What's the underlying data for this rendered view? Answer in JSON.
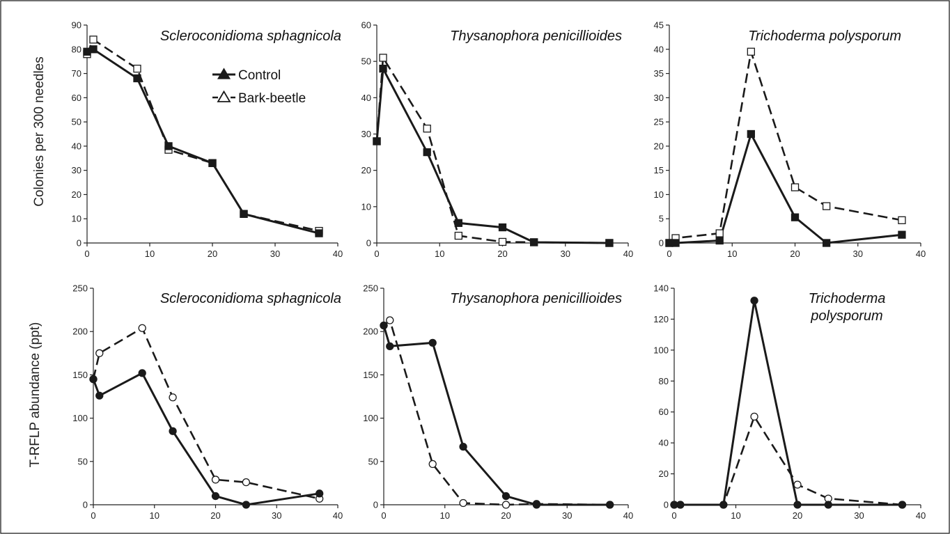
{
  "figure": {
    "ylabel_top": "Colonies per 300 needles",
    "ylabel_bottom": "T-RFLP abundance (ppt)",
    "legend": {
      "control_label": "Control",
      "bark_label": "Bark-beetle"
    }
  },
  "chart_data": [
    {
      "type": "line",
      "row": "top",
      "title": [
        "Scleroconidioma sphagnicola"
      ],
      "xlim": [
        0,
        40
      ],
      "xticks": [
        0,
        10,
        20,
        30,
        40
      ],
      "ylim": [
        0,
        90
      ],
      "yticks": [
        0,
        10,
        20,
        30,
        40,
        50,
        60,
        70,
        80,
        90
      ],
      "marker": "square",
      "series": [
        {
          "name": "Control",
          "style": "solid",
          "filled": true,
          "x": [
            0,
            1,
            8,
            13,
            20,
            25,
            37
          ],
          "y": [
            79,
            80,
            68,
            40,
            33,
            12,
            4
          ]
        },
        {
          "name": "Bark-beetle",
          "style": "dashed",
          "filled": false,
          "x": [
            0,
            1,
            8,
            13,
            20,
            25,
            37
          ],
          "y": [
            78,
            84,
            72,
            38.5,
            33,
            12,
            5
          ]
        }
      ]
    },
    {
      "type": "line",
      "row": "top",
      "title": [
        "Thysanophora penicillioides"
      ],
      "xlim": [
        0,
        40
      ],
      "xticks": [
        0,
        10,
        20,
        30,
        40
      ],
      "ylim": [
        0,
        60
      ],
      "yticks": [
        0,
        10,
        20,
        30,
        40,
        50,
        60
      ],
      "marker": "square",
      "series": [
        {
          "name": "Control",
          "style": "solid",
          "filled": true,
          "x": [
            0,
            1,
            8,
            13,
            20,
            25,
            37
          ],
          "y": [
            28,
            48,
            25,
            5.5,
            4.3,
            0.2,
            0
          ]
        },
        {
          "name": "Bark-beetle",
          "style": "dashed",
          "filled": false,
          "x": [
            0,
            1,
            8,
            13,
            20,
            25,
            37
          ],
          "y": [
            28,
            51,
            31.5,
            2,
            0.3,
            0.2,
            0
          ]
        }
      ]
    },
    {
      "type": "line",
      "row": "top",
      "title": [
        "Trichoderma polysporum"
      ],
      "xlim": [
        0,
        40
      ],
      "xticks": [
        0,
        10,
        20,
        30,
        40
      ],
      "ylim": [
        0,
        45
      ],
      "yticks": [
        0,
        5,
        10,
        15,
        20,
        25,
        30,
        35,
        40,
        45
      ],
      "marker": "square",
      "series": [
        {
          "name": "Control",
          "style": "solid",
          "filled": true,
          "x": [
            0,
            1,
            8,
            13,
            20,
            25,
            37
          ],
          "y": [
            0,
            0,
            0.5,
            22.5,
            5.3,
            0,
            1.7
          ]
        },
        {
          "name": "Bark-beetle",
          "style": "dashed",
          "filled": false,
          "x": [
            0,
            1,
            8,
            13,
            20,
            25,
            37
          ],
          "y": [
            0,
            1,
            2,
            39.5,
            11.5,
            7.6,
            4.7
          ]
        }
      ]
    },
    {
      "type": "line",
      "row": "bottom",
      "title": [
        "Scleroconidioma sphagnicola"
      ],
      "xlim": [
        0,
        40
      ],
      "xticks": [
        0,
        10,
        20,
        30,
        40
      ],
      "ylim": [
        0,
        250
      ],
      "yticks": [
        0,
        50,
        100,
        150,
        200,
        250
      ],
      "marker": "circle",
      "series": [
        {
          "name": "Control",
          "style": "solid",
          "filled": true,
          "x": [
            0,
            1,
            8,
            13,
            20,
            25,
            37
          ],
          "y": [
            145,
            126,
            152,
            85,
            10,
            0,
            13
          ]
        },
        {
          "name": "Bark-beetle",
          "style": "dashed",
          "filled": false,
          "x": [
            0,
            1,
            8,
            13,
            20,
            25,
            37
          ],
          "y": [
            145,
            175,
            204,
            124,
            29,
            26,
            7
          ]
        }
      ]
    },
    {
      "type": "line",
      "row": "bottom",
      "title": [
        "Thysanophora penicillioides"
      ],
      "xlim": [
        0,
        40
      ],
      "xticks": [
        0,
        10,
        20,
        30,
        40
      ],
      "ylim": [
        0,
        250
      ],
      "yticks": [
        0,
        50,
        100,
        150,
        200,
        250
      ],
      "marker": "circle",
      "series": [
        {
          "name": "Control",
          "style": "solid",
          "filled": true,
          "x": [
            0,
            1,
            8,
            13,
            20,
            25,
            37
          ],
          "y": [
            207,
            183,
            187,
            67,
            10,
            0,
            0
          ]
        },
        {
          "name": "Bark-beetle",
          "style": "dashed",
          "filled": false,
          "x": [
            0,
            1,
            8,
            13,
            20,
            25,
            37
          ],
          "y": [
            207,
            213,
            47,
            2,
            0,
            1,
            0
          ]
        }
      ]
    },
    {
      "type": "line",
      "row": "bottom",
      "title": [
        "Trichoderma",
        "polysporum"
      ],
      "xlim": [
        0,
        40
      ],
      "xticks": [
        0,
        10,
        20,
        30,
        40
      ],
      "ylim": [
        0,
        140
      ],
      "yticks": [
        0,
        20,
        40,
        60,
        80,
        100,
        120,
        140
      ],
      "marker": "circle",
      "series": [
        {
          "name": "Control",
          "style": "solid",
          "filled": true,
          "x": [
            0,
            1,
            8,
            13,
            20,
            25,
            37
          ],
          "y": [
            0,
            0,
            0,
            132,
            0,
            0,
            0
          ]
        },
        {
          "name": "Bark-beetle",
          "style": "dashed",
          "filled": false,
          "x": [
            0,
            1,
            8,
            13,
            20,
            25,
            37
          ],
          "y": [
            0,
            0,
            0,
            57,
            13,
            4,
            0
          ]
        }
      ]
    }
  ]
}
